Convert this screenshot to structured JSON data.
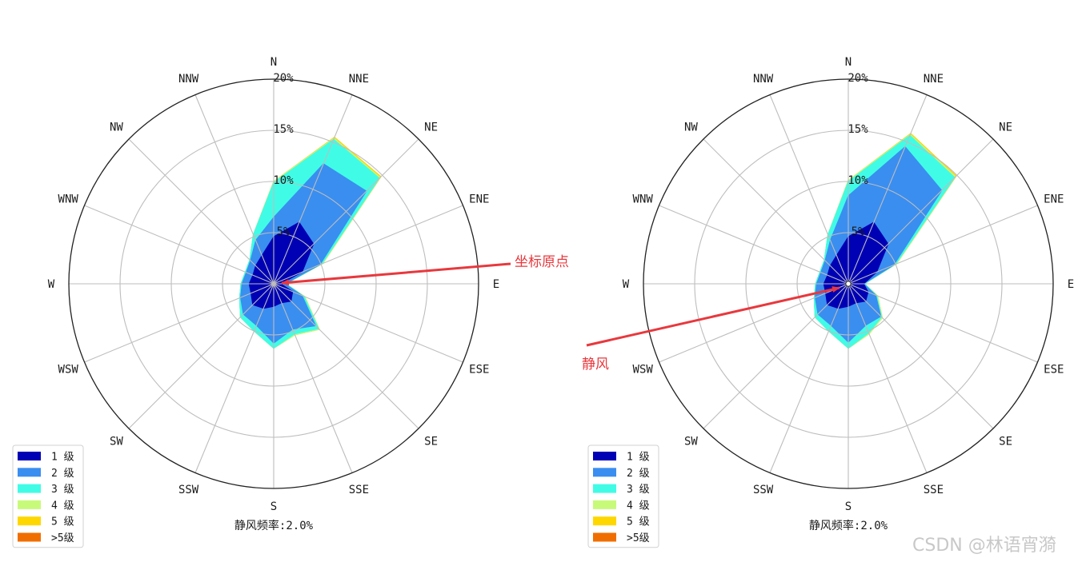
{
  "chart_data": [
    {
      "type": "polar-stacked-area",
      "title": "",
      "directions": [
        "N",
        "NNE",
        "NE",
        "ENE",
        "E",
        "ESE",
        "SE",
        "SSE",
        "S",
        "SSW",
        "SW",
        "WSW",
        "W",
        "WNW",
        "NW",
        "NNW"
      ],
      "radial_ticks": [
        5,
        10,
        15,
        20
      ],
      "radial_tick_labels": [
        "5%",
        "10%",
        "15%",
        "20%"
      ],
      "rmax": 20,
      "series": [
        {
          "name": "1 级",
          "color": "#0000b4",
          "values": [
            4.6,
            6.5,
            5.5,
            3.0,
            0.7,
            2.0,
            2.4,
            2.0,
            2.2,
            2.6,
            2.9,
            2.4,
            2.4,
            2.2,
            2.5,
            3.0
          ]
        },
        {
          "name": "2 级",
          "color": "#3a8ef0",
          "values": [
            6.5,
            12.7,
            12.8,
            4.9,
            1.1,
            3.0,
            5.8,
            4.8,
            5.8,
            4.4,
            4.2,
            3.5,
            3.1,
            2.9,
            3.2,
            4.6
          ]
        },
        {
          "name": "3 级",
          "color": "#40fce6",
          "values": [
            9.9,
            15.3,
            14.6,
            5.1,
            1.2,
            3.2,
            6.2,
            5.3,
            6.3,
            5.0,
            4.6,
            3.6,
            3.2,
            3.0,
            3.3,
            5.2
          ]
        },
        {
          "name": "4 级",
          "color": "#c8fa7a",
          "values": [
            10.0,
            15.4,
            14.7,
            5.2,
            1.2,
            3.3,
            6.3,
            5.4,
            6.3,
            5.0,
            4.6,
            3.6,
            3.2,
            3.0,
            3.3,
            5.2
          ]
        },
        {
          "name": "5 级",
          "color": "#ffd700",
          "values": [
            10.0,
            15.5,
            14.8,
            5.2,
            1.2,
            3.3,
            6.3,
            5.4,
            6.3,
            5.0,
            4.6,
            3.6,
            3.2,
            3.0,
            3.3,
            5.2
          ]
        },
        {
          "name": ">5级",
          "color": "#f06e00",
          "values": [
            10.0,
            15.5,
            14.8,
            5.2,
            1.2,
            3.3,
            6.3,
            5.4,
            6.3,
            5.0,
            4.6,
            3.6,
            3.2,
            3.0,
            3.3,
            5.2
          ]
        }
      ],
      "calm_label": "静风频率:2.0%",
      "calm_circle": false,
      "legend_location": "lower-left"
    },
    {
      "type": "polar-stacked-area",
      "title": "",
      "directions": [
        "N",
        "NNE",
        "NE",
        "ENE",
        "E",
        "ESE",
        "SE",
        "SSE",
        "S",
        "SSW",
        "SW",
        "WSW",
        "W",
        "WNW",
        "NW",
        "NNW"
      ],
      "radial_ticks": [
        5,
        10,
        15,
        20
      ],
      "radial_tick_labels": [
        "5%",
        "10%",
        "15%",
        "20%"
      ],
      "rmax": 20,
      "series": [
        {
          "name": "1 级",
          "color": "#0000b4",
          "values": [
            4.6,
            6.5,
            5.5,
            3.0,
            1.5,
            2.1,
            2.4,
            2.0,
            2.2,
            2.6,
            2.9,
            2.4,
            2.4,
            2.2,
            2.5,
            3.0
          ]
        },
        {
          "name": "2 级",
          "color": "#3a8ef0",
          "values": [
            8.6,
            14.5,
            12.9,
            4.8,
            1.5,
            2.9,
            4.5,
            4.4,
            5.7,
            4.4,
            4.2,
            3.5,
            3.1,
            2.9,
            3.2,
            4.6
          ]
        },
        {
          "name": "3 级",
          "color": "#40fce6",
          "values": [
            10.0,
            15.7,
            14.7,
            5.0,
            1.6,
            3.0,
            4.6,
            5.2,
            6.3,
            5.0,
            4.6,
            3.6,
            3.2,
            3.0,
            3.3,
            5.2
          ]
        },
        {
          "name": "4 级",
          "color": "#c8fa7a",
          "values": [
            10.1,
            15.8,
            14.8,
            5.1,
            1.6,
            3.1,
            4.7,
            5.3,
            6.3,
            5.0,
            4.6,
            3.6,
            3.2,
            3.0,
            3.3,
            5.2
          ]
        },
        {
          "name": "5 级",
          "color": "#ffd700",
          "values": [
            10.1,
            15.9,
            14.9,
            5.1,
            1.6,
            3.1,
            4.7,
            5.3,
            6.3,
            5.0,
            4.6,
            3.6,
            3.2,
            3.0,
            3.3,
            5.2
          ]
        },
        {
          "name": ">5级",
          "color": "#f06e00",
          "values": [
            10.1,
            15.9,
            14.9,
            5.1,
            1.6,
            3.1,
            4.7,
            5.3,
            6.3,
            5.0,
            4.6,
            3.6,
            3.2,
            3.0,
            3.3,
            5.2
          ]
        }
      ],
      "calm_label": "静风频率:2.0%",
      "calm_circle": true,
      "legend_location": "lower-left"
    }
  ],
  "annotations": [
    {
      "text": "坐标原点",
      "color": "#e8383d",
      "points_to": "origin of left chart"
    },
    {
      "text": "静风",
      "color": "#e8383d",
      "points_to": "calm circle of right chart"
    }
  ],
  "watermark": {
    "text": "CSDN @林语宵漪",
    "color": "#c8c8c8"
  }
}
